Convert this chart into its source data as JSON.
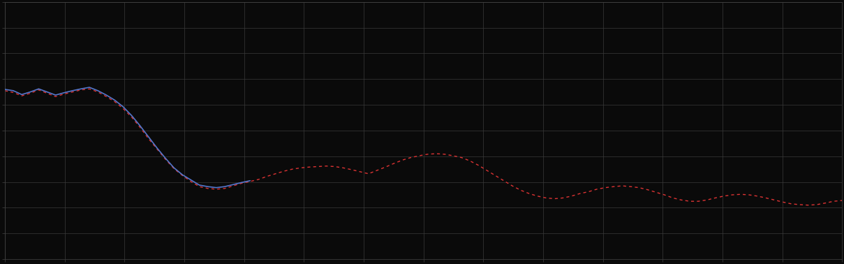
{
  "background_color": "#0a0a0a",
  "plot_bg_color": "#0a0a0a",
  "grid_color": "#3a3a3a",
  "blue_line_color": "#5577cc",
  "red_line_color": "#dd3333",
  "figsize": [
    12.09,
    3.78
  ],
  "dpi": 100,
  "xlim": [
    0,
    100
  ],
  "ylim": [
    0,
    10
  ],
  "n_x_grid": 14,
  "n_y_grid": 10,
  "blue_x": [
    0,
    1,
    2,
    3,
    4,
    5,
    6,
    7,
    8,
    9,
    10,
    11,
    12,
    13,
    14,
    15,
    16,
    17,
    18,
    19,
    20,
    21,
    22,
    23,
    24,
    25,
    26,
    27,
    28,
    29
  ],
  "blue_y": [
    6.6,
    6.55,
    6.4,
    6.5,
    6.62,
    6.5,
    6.38,
    6.47,
    6.55,
    6.62,
    6.68,
    6.55,
    6.38,
    6.18,
    5.92,
    5.58,
    5.18,
    4.75,
    4.32,
    3.92,
    3.55,
    3.28,
    3.08,
    2.88,
    2.82,
    2.78,
    2.82,
    2.9,
    2.98,
    3.05
  ],
  "red_x": [
    0,
    1,
    2,
    3,
    4,
    5,
    6,
    7,
    8,
    9,
    10,
    11,
    12,
    13,
    14,
    15,
    16,
    17,
    18,
    19,
    20,
    21,
    22,
    23,
    24,
    25,
    26,
    27,
    28,
    29,
    30,
    31,
    32,
    33,
    34,
    35,
    36,
    37,
    38,
    39,
    40,
    41,
    42,
    43,
    44,
    45,
    46,
    47,
    48,
    49,
    50,
    51,
    52,
    53,
    54,
    55,
    56,
    57,
    58,
    59,
    60,
    61,
    62,
    63,
    64,
    65,
    66,
    67,
    68,
    69,
    70,
    71,
    72,
    73,
    74,
    75,
    76,
    77,
    78,
    79,
    80,
    81,
    82,
    83,
    84,
    85,
    86,
    87,
    88,
    89,
    90,
    91,
    92,
    93,
    94,
    95,
    96,
    97,
    98,
    99
  ],
  "red_y": [
    6.55,
    6.48,
    6.35,
    6.45,
    6.58,
    6.45,
    6.32,
    6.42,
    6.5,
    6.58,
    6.62,
    6.5,
    6.32,
    6.12,
    5.85,
    5.52,
    5.12,
    4.68,
    4.28,
    3.88,
    3.52,
    3.25,
    3.02,
    2.82,
    2.75,
    2.72,
    2.75,
    2.85,
    2.95,
    3.02,
    3.1,
    3.22,
    3.32,
    3.42,
    3.5,
    3.55,
    3.58,
    3.6,
    3.62,
    3.6,
    3.55,
    3.48,
    3.4,
    3.32,
    3.45,
    3.58,
    3.72,
    3.85,
    3.95,
    4.02,
    4.08,
    4.1,
    4.08,
    4.02,
    3.95,
    3.82,
    3.65,
    3.45,
    3.25,
    3.05,
    2.85,
    2.68,
    2.55,
    2.45,
    2.38,
    2.35,
    2.38,
    2.45,
    2.55,
    2.62,
    2.72,
    2.78,
    2.82,
    2.85,
    2.82,
    2.78,
    2.7,
    2.6,
    2.5,
    2.38,
    2.3,
    2.25,
    2.25,
    2.3,
    2.38,
    2.45,
    2.5,
    2.52,
    2.5,
    2.45,
    2.38,
    2.3,
    2.22,
    2.15,
    2.12,
    2.1,
    2.12,
    2.18,
    2.25,
    2.28
  ]
}
